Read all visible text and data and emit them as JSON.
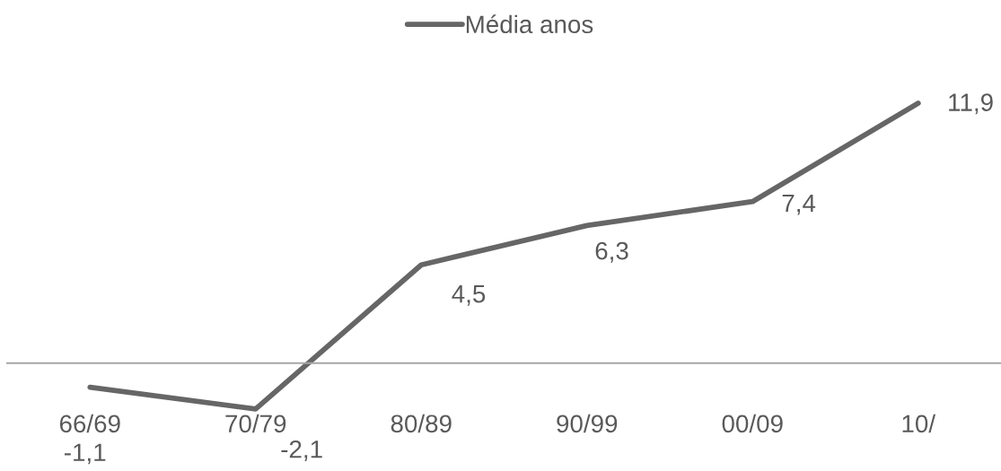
{
  "chart_data": {
    "type": "line",
    "legend": "top",
    "grid": false,
    "marker": "none",
    "line_style": "solid",
    "tick_labels": "x",
    "categories": [
      "66/69",
      "70/79",
      "80/89",
      "90/99",
      "00/09",
      "10/"
    ],
    "series": [
      {
        "name": "Média anos",
        "color": "#666666",
        "values": [
          -1.1,
          -2.1,
          4.5,
          6.3,
          7.4,
          11.9
        ],
        "value_labels": [
          "-1,1",
          "-2,1",
          "4,5",
          "6,3",
          "7,4",
          "11,9"
        ]
      }
    ]
  }
}
